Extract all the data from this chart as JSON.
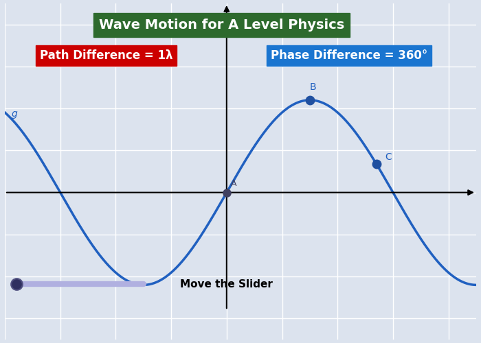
{
  "title": "Wave Motion for A Level Physics",
  "title_bg": "#2d6a2d",
  "title_color": "white",
  "label_path": "Path Difference = 1λ",
  "label_path_bg": "#cc0000",
  "label_path_color": "white",
  "label_phase": "Phase Difference = 360°",
  "label_phase_bg": "#1a75d0",
  "label_phase_color": "white",
  "slider_label": "Move the Slider",
  "bg_color": "#dce3ee",
  "grid_color": "white",
  "wave_color": "#2060c0",
  "point_color": "#404060",
  "point_A_label": "A",
  "point_B_label": "B",
  "point_C_label": "C",
  "point_g_label": "g",
  "x_min": -4.0,
  "x_max": 4.5,
  "y_min": -3.5,
  "y_max": 4.5,
  "wave_amplitude": 2.2,
  "wave_period": 6.0,
  "point_A_x": 0.0,
  "point_B_x": 1.5,
  "point_C_x": 2.7,
  "figsize": [
    7.0,
    5.0
  ],
  "dpi": 100
}
